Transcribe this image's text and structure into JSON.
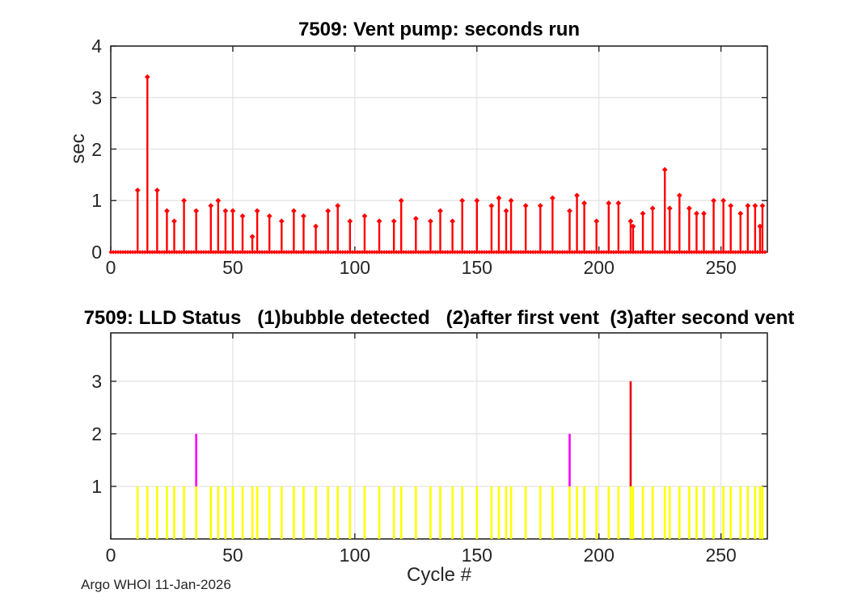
{
  "figure": {
    "footer": "Argo WHOI 11-Jan-2026"
  },
  "colors": {
    "stem": "#ff0000",
    "status_bubble_detected": "#ffff00",
    "status_after_first_vent": "#ff00ff",
    "status_after_second_vent": "#e8000b",
    "grid": "#e2e2e2",
    "axis": "#262626",
    "title_text": "#000000"
  },
  "chart_data": [
    {
      "type": "stem",
      "title": "7509: Vent pump: seconds run",
      "ylabel": "sec",
      "xlabel": "",
      "xlim": [
        0,
        269
      ],
      "ylim": [
        0,
        4
      ],
      "xticks": [
        0,
        50,
        100,
        150,
        200,
        250
      ],
      "yticks": [
        0,
        1,
        2,
        3,
        4
      ],
      "grid": true,
      "n_cycles": 269,
      "baseline_value": 0,
      "series_name": "vent pump seconds run",
      "points": [
        [
          11,
          1.2
        ],
        [
          15,
          3.4
        ],
        [
          19,
          1.2
        ],
        [
          23,
          0.8
        ],
        [
          26,
          0.6
        ],
        [
          30,
          1.0
        ],
        [
          35,
          0.8
        ],
        [
          41,
          0.9
        ],
        [
          44,
          1.0
        ],
        [
          47,
          0.8
        ],
        [
          50,
          0.8
        ],
        [
          54,
          0.7
        ],
        [
          58,
          0.3
        ],
        [
          60,
          0.8
        ],
        [
          65,
          0.7
        ],
        [
          70,
          0.6
        ],
        [
          75,
          0.8
        ],
        [
          79,
          0.7
        ],
        [
          84,
          0.5
        ],
        [
          89,
          0.8
        ],
        [
          93,
          0.9
        ],
        [
          98,
          0.6
        ],
        [
          104,
          0.7
        ],
        [
          110,
          0.6
        ],
        [
          116,
          0.6
        ],
        [
          119,
          1.0
        ],
        [
          125,
          0.65
        ],
        [
          131,
          0.6
        ],
        [
          135,
          0.8
        ],
        [
          140,
          0.6
        ],
        [
          144,
          1.0
        ],
        [
          150,
          1.0
        ],
        [
          156,
          0.9
        ],
        [
          159,
          1.05
        ],
        [
          162,
          0.8
        ],
        [
          164,
          1.0
        ],
        [
          170,
          0.9
        ],
        [
          176,
          0.9
        ],
        [
          181,
          1.05
        ],
        [
          188,
          0.8
        ],
        [
          191,
          1.1
        ],
        [
          194,
          0.95
        ],
        [
          199,
          0.6
        ],
        [
          204,
          0.95
        ],
        [
          208,
          0.95
        ],
        [
          213,
          0.6
        ],
        [
          214,
          0.5
        ],
        [
          218,
          0.75
        ],
        [
          222,
          0.85
        ],
        [
          227,
          1.6
        ],
        [
          229,
          0.85
        ],
        [
          233,
          1.1
        ],
        [
          237,
          0.85
        ],
        [
          240,
          0.75
        ],
        [
          243,
          0.75
        ],
        [
          247,
          1.0
        ],
        [
          251,
          1.0
        ],
        [
          254,
          0.9
        ],
        [
          258,
          0.75
        ],
        [
          261,
          0.9
        ],
        [
          264,
          0.9
        ],
        [
          266,
          0.5
        ],
        [
          267,
          0.9
        ]
      ]
    },
    {
      "type": "bar",
      "title": "7509: LLD Status   (1)bubble detected   (2)after first vent  (3)after second vent",
      "xlabel": "Cycle #",
      "ylabel": "",
      "xlim": [
        0,
        269
      ],
      "ylim": [
        0,
        3.92
      ],
      "xticks": [
        0,
        50,
        100,
        150,
        200,
        250
      ],
      "yticks": [
        1,
        2,
        3
      ],
      "grid": true,
      "legend": [
        {
          "value": 1,
          "label": "bubble detected",
          "color": "#ffff00"
        },
        {
          "value": 2,
          "label": "after first vent",
          "color": "#ff00ff"
        },
        {
          "value": 3,
          "label": "after second vent",
          "color": "#e8000b"
        }
      ],
      "bars": [
        [
          11,
          1
        ],
        [
          15,
          1
        ],
        [
          19,
          1
        ],
        [
          23,
          1
        ],
        [
          26,
          1
        ],
        [
          30,
          1
        ],
        [
          35,
          2
        ],
        [
          41,
          1
        ],
        [
          44,
          1
        ],
        [
          47,
          1
        ],
        [
          50,
          1
        ],
        [
          54,
          1
        ],
        [
          58,
          1
        ],
        [
          60,
          1
        ],
        [
          65,
          1
        ],
        [
          70,
          1
        ],
        [
          75,
          1
        ],
        [
          79,
          1
        ],
        [
          84,
          1
        ],
        [
          89,
          1
        ],
        [
          93,
          1
        ],
        [
          98,
          1
        ],
        [
          104,
          1
        ],
        [
          110,
          1
        ],
        [
          116,
          1
        ],
        [
          119,
          1
        ],
        [
          125,
          1
        ],
        [
          131,
          1
        ],
        [
          135,
          1
        ],
        [
          140,
          1
        ],
        [
          144,
          1
        ],
        [
          150,
          1
        ],
        [
          156,
          1
        ],
        [
          159,
          1
        ],
        [
          162,
          1
        ],
        [
          164,
          1
        ],
        [
          170,
          1
        ],
        [
          176,
          1
        ],
        [
          181,
          1
        ],
        [
          188,
          2
        ],
        [
          191,
          1
        ],
        [
          194,
          1
        ],
        [
          199,
          1
        ],
        [
          204,
          1
        ],
        [
          208,
          1
        ],
        [
          213,
          3
        ],
        [
          214,
          1
        ],
        [
          218,
          1
        ],
        [
          222,
          1
        ],
        [
          227,
          1
        ],
        [
          229,
          1
        ],
        [
          233,
          1
        ],
        [
          237,
          1
        ],
        [
          240,
          1
        ],
        [
          243,
          1
        ],
        [
          247,
          1
        ],
        [
          251,
          1
        ],
        [
          254,
          1
        ],
        [
          258,
          1
        ],
        [
          261,
          1
        ],
        [
          264,
          1
        ],
        [
          266,
          1
        ],
        [
          267,
          1
        ]
      ]
    }
  ]
}
